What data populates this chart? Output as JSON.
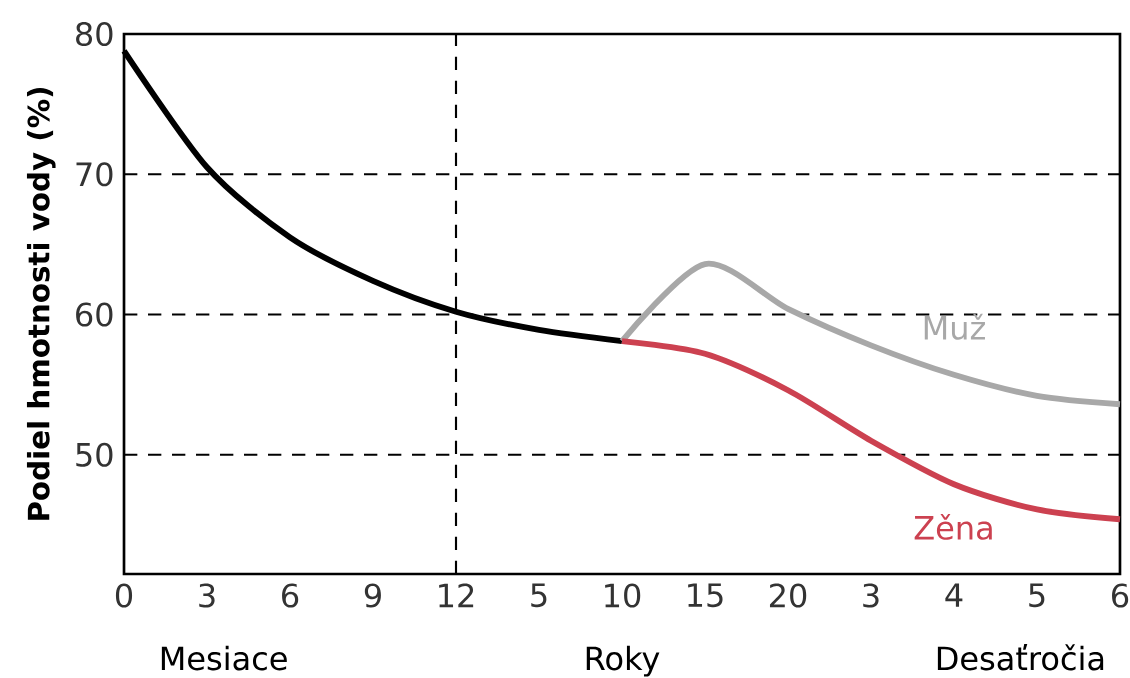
{
  "chart_data": {
    "type": "line",
    "ylabel": "Podiel hmotnosti vody (%)",
    "categories": [
      "0",
      "3",
      "6",
      "9",
      "12",
      "5",
      "10",
      "15",
      "20",
      "3",
      "4",
      "5",
      "6"
    ],
    "ylim": [
      41.5,
      80
    ],
    "yticks": [
      50,
      60,
      70,
      80
    ],
    "grid": "y",
    "line_style": "solid",
    "legend": false,
    "annotations": [
      "Mesiace",
      "Roky",
      "Desaťročia"
    ],
    "ref_lines": [
      {
        "axis": "x",
        "value": "12",
        "line_style": "dashed",
        "color": "#000000"
      }
    ],
    "series": [
      {
        "color": "#000000",
        "values": [
          78.8,
          70.5,
          65.5,
          62.4,
          60.2,
          58.9,
          58.1,
          null,
          null,
          null,
          null,
          null,
          null
        ]
      },
      {
        "name": "Muž",
        "color": "#a8a8a8",
        "values": [
          null,
          null,
          null,
          null,
          null,
          null,
          58.1,
          63.6,
          60.4,
          57.8,
          55.7,
          54.2,
          53.6
        ]
      },
      {
        "name": "Zěna",
        "color": "#cc4150",
        "values": [
          null,
          null,
          null,
          null,
          null,
          null,
          58.1,
          57.2,
          54.6,
          51,
          47.9,
          46.1,
          45.4
        ]
      }
    ]
  }
}
